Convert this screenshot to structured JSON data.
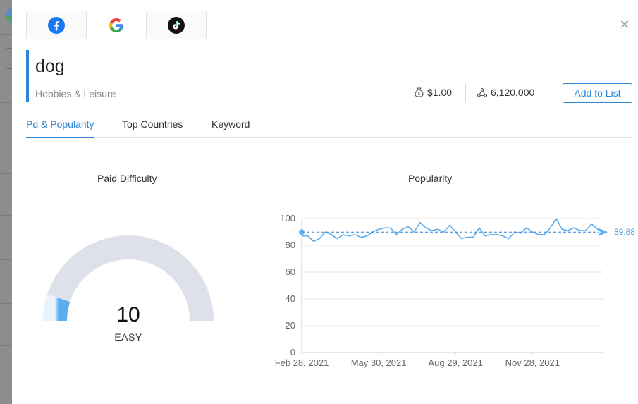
{
  "platform_tabs": [
    {
      "name": "facebook",
      "icon": "facebook-icon",
      "active": false
    },
    {
      "name": "google",
      "icon": "google-icon",
      "active": true
    },
    {
      "name": "tiktok",
      "icon": "tiktok-icon",
      "active": false
    }
  ],
  "keyword": {
    "title": "dog",
    "category": "Hobbies & Leisure",
    "cpc": "$1.00",
    "volume": "6,120,000",
    "add_button": "Add to List"
  },
  "tabs": [
    "Pd & Popularity",
    "Top Countries",
    "Keyword"
  ],
  "active_tab": 0,
  "paid_difficulty": {
    "title": "Paid Difficulty",
    "value": 10,
    "value_text": "10",
    "label": "EASY"
  },
  "popularity": {
    "title": "Popularity",
    "average_label": "89.88"
  },
  "colors": {
    "accent": "#2f86d6",
    "line": "#5aaef0",
    "gauge_track": "#dfe1ea"
  },
  "chart_data": {
    "type": "line",
    "title": "Popularity",
    "xlabel": "",
    "ylabel": "",
    "ylim": [
      0,
      100
    ],
    "yticks": [
      "0",
      "20",
      "40",
      "60",
      "80",
      "100"
    ],
    "xtick_labels": [
      "Feb 28, 2021",
      "May 30, 2021",
      "Aug 29, 2021",
      "Nov 28, 2021"
    ],
    "xtick_index": [
      0,
      13,
      26,
      39
    ],
    "average": 89.88,
    "x": [
      "2021-02-28",
      "2021-03-07",
      "2021-03-14",
      "2021-03-21",
      "2021-03-28",
      "2021-04-04",
      "2021-04-11",
      "2021-04-18",
      "2021-04-25",
      "2021-05-02",
      "2021-05-09",
      "2021-05-16",
      "2021-05-23",
      "2021-05-30",
      "2021-06-06",
      "2021-06-13",
      "2021-06-20",
      "2021-06-27",
      "2021-07-04",
      "2021-07-11",
      "2021-07-18",
      "2021-07-25",
      "2021-08-01",
      "2021-08-08",
      "2021-08-15",
      "2021-08-22",
      "2021-08-29",
      "2021-09-05",
      "2021-09-12",
      "2021-09-19",
      "2021-09-26",
      "2021-10-03",
      "2021-10-10",
      "2021-10-17",
      "2021-10-24",
      "2021-10-31",
      "2021-11-07",
      "2021-11-14",
      "2021-11-21",
      "2021-11-28",
      "2021-12-05",
      "2021-12-12",
      "2021-12-19",
      "2021-12-26",
      "2022-01-02",
      "2022-01-09",
      "2022-01-16",
      "2022-01-23",
      "2022-01-30",
      "2022-02-06",
      "2022-02-13",
      "2022-02-20"
    ],
    "series": [
      {
        "values": [
          87,
          87,
          83,
          85,
          90,
          88,
          85,
          88,
          87,
          88,
          86,
          87,
          90,
          92,
          93,
          93,
          88,
          92,
          94,
          90,
          97,
          93,
          91,
          92,
          90,
          95,
          90,
          85,
          86,
          86,
          93,
          87,
          88,
          88,
          87,
          85,
          90,
          89,
          93,
          90,
          88,
          88,
          93,
          100,
          92,
          91,
          93,
          91,
          91,
          96,
          92,
          90
        ]
      }
    ],
    "grid": true,
    "legend": "none"
  }
}
